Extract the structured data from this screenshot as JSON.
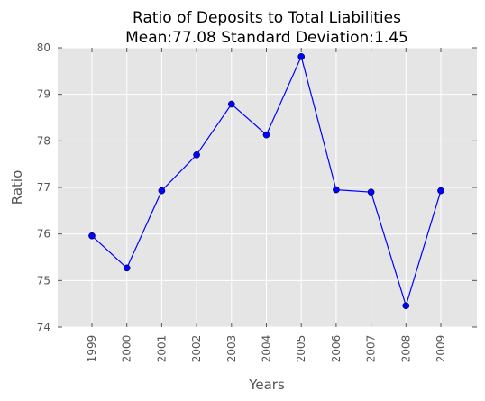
{
  "chart_data": {
    "type": "line",
    "title": [
      "Ratio of Deposits to Total Liabilities",
      "Mean:77.08 Standard Deviation:1.45"
    ],
    "xlabel": "Years",
    "ylabel": "Ratio",
    "x": [
      "1999",
      "2000",
      "2001",
      "2002",
      "2003",
      "2004",
      "2005",
      "2006",
      "2007",
      "2008",
      "2009"
    ],
    "series": [
      {
        "values": [
          75.96,
          75.27,
          76.93,
          77.7,
          78.79,
          78.13,
          79.81,
          76.95,
          76.9,
          74.46,
          76.93
        ],
        "color": "#0000ff",
        "marker": "circle"
      }
    ],
    "ylim": [
      74,
      80
    ],
    "yticks": [
      "74",
      "75",
      "76",
      "77",
      "78",
      "79",
      "80"
    ],
    "grid": true,
    "background": "#e5e5e5",
    "grid_color": "#ffffff"
  }
}
